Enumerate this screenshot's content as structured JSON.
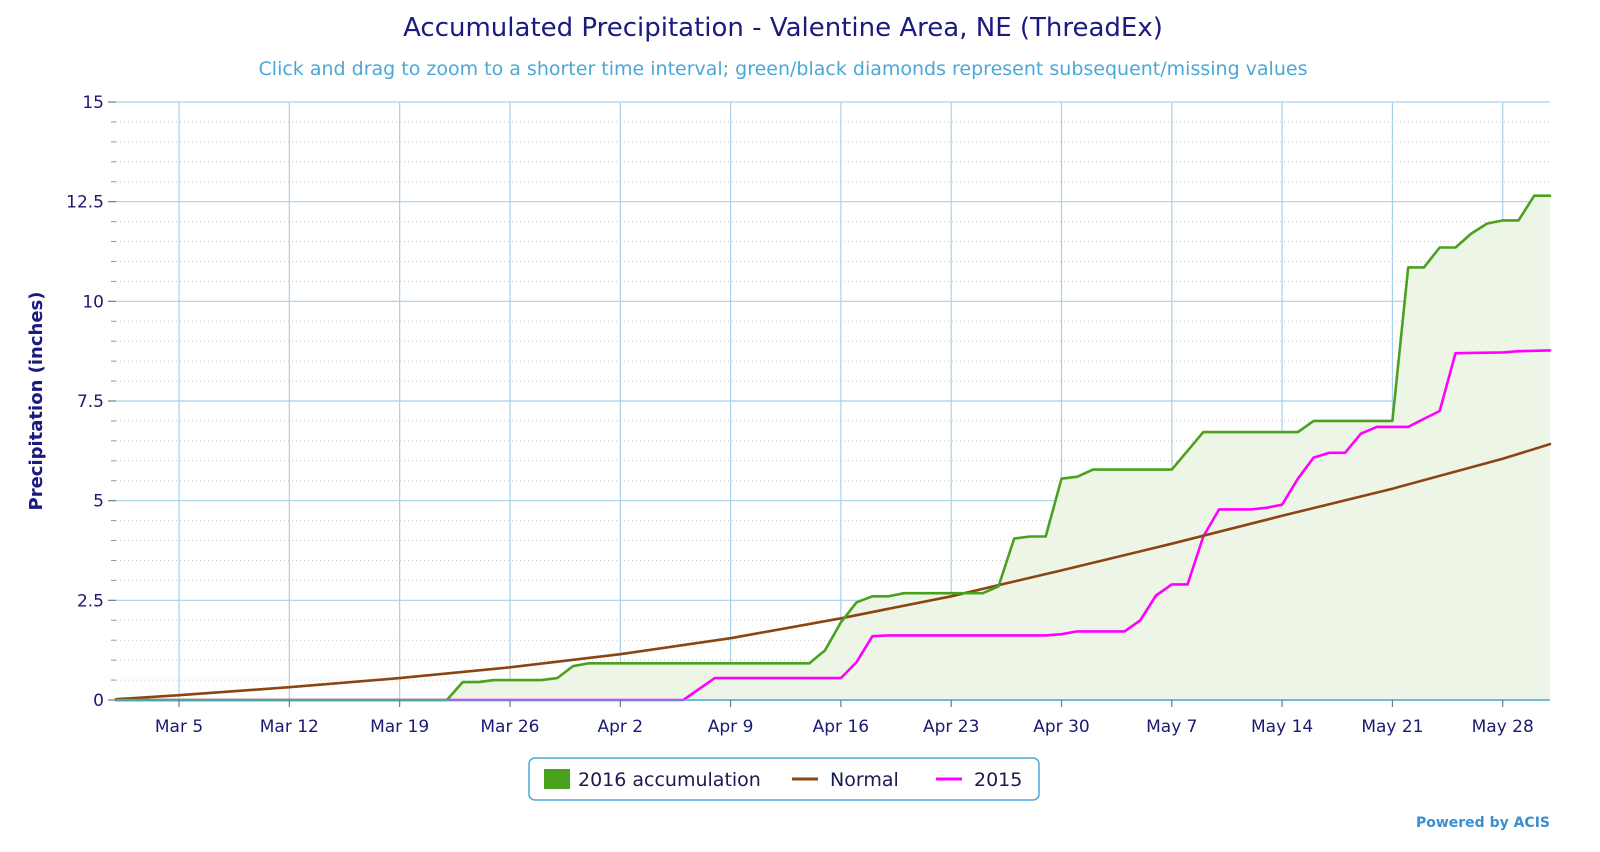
{
  "chart_data": {
    "type": "area",
    "title": "Accumulated Precipitation - Valentine Area, NE (ThreadEx)",
    "subtitle": "Click and drag to zoom to a shorter time interval; green/black diamonds represent subsequent/missing values",
    "ylabel": "Precipitation (inches)",
    "xlabel": "",
    "ylim": [
      0,
      15
    ],
    "y_ticks": [
      {
        "value": 0,
        "label": "0"
      },
      {
        "value": 2.5,
        "label": "2.5"
      },
      {
        "value": 5,
        "label": "5"
      },
      {
        "value": 7.5,
        "label": "7.5"
      },
      {
        "value": 10,
        "label": "10"
      },
      {
        "value": 12.5,
        "label": "12.5"
      },
      {
        "value": 15,
        "label": "15"
      }
    ],
    "xlim": [
      "2016-03-01",
      "2016-05-31"
    ],
    "x_ticks": [
      {
        "date": "2016-03-05",
        "label": "Mar 5"
      },
      {
        "date": "2016-03-12",
        "label": "Mar 12"
      },
      {
        "date": "2016-03-19",
        "label": "Mar 19"
      },
      {
        "date": "2016-03-26",
        "label": "Mar 26"
      },
      {
        "date": "2016-04-02",
        "label": "Apr 2"
      },
      {
        "date": "2016-04-09",
        "label": "Apr 9"
      },
      {
        "date": "2016-04-16",
        "label": "Apr 16"
      },
      {
        "date": "2016-04-23",
        "label": "Apr 23"
      },
      {
        "date": "2016-04-30",
        "label": "Apr 30"
      },
      {
        "date": "2016-05-07",
        "label": "May 7"
      },
      {
        "date": "2016-05-14",
        "label": "May 14"
      },
      {
        "date": "2016-05-21",
        "label": "May 21"
      },
      {
        "date": "2016-05-28",
        "label": "May 28"
      }
    ],
    "grid": true,
    "legend_position": "bottom-center",
    "credit": "Powered by ACIS",
    "series": [
      {
        "name": "2016 accumulation",
        "kind": "area",
        "color": "#4aa11e",
        "fill": "#edf5e6",
        "points": [
          [
            "2016-03-01",
            0
          ],
          [
            "2016-03-22",
            0
          ],
          [
            "2016-03-23",
            0.45
          ],
          [
            "2016-03-24",
            0.45
          ],
          [
            "2016-03-25",
            0.5
          ],
          [
            "2016-03-28",
            0.5
          ],
          [
            "2016-03-29",
            0.55
          ],
          [
            "2016-03-30",
            0.85
          ],
          [
            "2016-03-31",
            0.92
          ],
          [
            "2016-04-14",
            0.92
          ],
          [
            "2016-04-15",
            1.25
          ],
          [
            "2016-04-16",
            1.95
          ],
          [
            "2016-04-17",
            2.45
          ],
          [
            "2016-04-18",
            2.6
          ],
          [
            "2016-04-19",
            2.6
          ],
          [
            "2016-04-20",
            2.68
          ],
          [
            "2016-04-25",
            2.68
          ],
          [
            "2016-04-26",
            2.85
          ],
          [
            "2016-04-27",
            4.05
          ],
          [
            "2016-04-28",
            4.1
          ],
          [
            "2016-04-29",
            4.1
          ],
          [
            "2016-04-30",
            5.55
          ],
          [
            "2016-05-01",
            5.6
          ],
          [
            "2016-05-02",
            5.78
          ],
          [
            "2016-05-07",
            5.78
          ],
          [
            "2016-05-08",
            6.25
          ],
          [
            "2016-05-09",
            6.72
          ],
          [
            "2016-05-15",
            6.72
          ],
          [
            "2016-05-16",
            7.0
          ],
          [
            "2016-05-21",
            7.0
          ],
          [
            "2016-05-22",
            10.85
          ],
          [
            "2016-05-23",
            10.85
          ],
          [
            "2016-05-24",
            11.35
          ],
          [
            "2016-05-25",
            11.35
          ],
          [
            "2016-05-26",
            11.7
          ],
          [
            "2016-05-27",
            11.95
          ],
          [
            "2016-05-28",
            12.03
          ],
          [
            "2016-05-29",
            12.03
          ],
          [
            "2016-05-30",
            12.65
          ],
          [
            "2016-05-31",
            12.65
          ]
        ]
      },
      {
        "name": "Normal",
        "kind": "line",
        "color": "#8b4513",
        "points": [
          [
            "2016-03-01",
            0.02
          ],
          [
            "2016-03-05",
            0.12
          ],
          [
            "2016-03-12",
            0.32
          ],
          [
            "2016-03-19",
            0.55
          ],
          [
            "2016-03-26",
            0.82
          ],
          [
            "2016-04-02",
            1.15
          ],
          [
            "2016-04-09",
            1.55
          ],
          [
            "2016-04-16",
            2.05
          ],
          [
            "2016-04-23",
            2.6
          ],
          [
            "2016-04-30",
            3.25
          ],
          [
            "2016-05-07",
            3.92
          ],
          [
            "2016-05-14",
            4.62
          ],
          [
            "2016-05-21",
            5.3
          ],
          [
            "2016-05-28",
            6.05
          ],
          [
            "2016-05-31",
            6.42
          ]
        ]
      },
      {
        "name": "2015",
        "kind": "line",
        "color": "#ff00ff",
        "points": [
          [
            "2016-03-01",
            0
          ],
          [
            "2016-04-06",
            0
          ],
          [
            "2016-04-08",
            0.55
          ],
          [
            "2016-04-16",
            0.55
          ],
          [
            "2016-04-17",
            0.95
          ],
          [
            "2016-04-18",
            1.6
          ],
          [
            "2016-04-19",
            1.62
          ],
          [
            "2016-04-29",
            1.62
          ],
          [
            "2016-04-30",
            1.65
          ],
          [
            "2016-05-01",
            1.72
          ],
          [
            "2016-05-04",
            1.72
          ],
          [
            "2016-05-05",
            2.0
          ],
          [
            "2016-05-06",
            2.62
          ],
          [
            "2016-05-07",
            2.9
          ],
          [
            "2016-05-08",
            2.9
          ],
          [
            "2016-05-09",
            4.1
          ],
          [
            "2016-05-10",
            4.78
          ],
          [
            "2016-05-12",
            4.78
          ],
          [
            "2016-05-13",
            4.82
          ],
          [
            "2016-05-14",
            4.9
          ],
          [
            "2016-05-15",
            5.55
          ],
          [
            "2016-05-16",
            6.08
          ],
          [
            "2016-05-17",
            6.2
          ],
          [
            "2016-05-18",
            6.2
          ],
          [
            "2016-05-19",
            6.68
          ],
          [
            "2016-05-20",
            6.85
          ],
          [
            "2016-05-21",
            6.85
          ],
          [
            "2016-05-22",
            6.85
          ],
          [
            "2016-05-23",
            7.05
          ],
          [
            "2016-05-24",
            7.25
          ],
          [
            "2016-05-25",
            8.7
          ],
          [
            "2016-05-28",
            8.72
          ],
          [
            "2016-05-29",
            8.75
          ],
          [
            "2016-05-31",
            8.77
          ]
        ]
      }
    ]
  }
}
